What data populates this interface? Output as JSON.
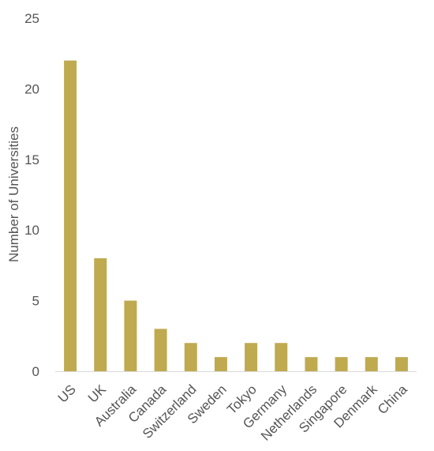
{
  "chart_data": {
    "type": "bar",
    "title": "",
    "xlabel": "",
    "ylabel": "Number of Universities",
    "categories": [
      "US",
      "UK",
      "Australia",
      "Canada",
      "Switzerland",
      "Sweden",
      "Tokyo",
      "Germany",
      "Netherlands",
      "Singapore",
      "Denmark",
      "China"
    ],
    "values": [
      22,
      8,
      5,
      3,
      2,
      1,
      2,
      2,
      1,
      1,
      1,
      1
    ],
    "ylim": [
      0,
      25
    ],
    "yticks": [
      "0",
      "5",
      "10",
      "15",
      "20",
      "25"
    ],
    "grid": false,
    "legend": "none",
    "bar_color": "#bfaa50",
    "axis_color": "#d9d9d9",
    "text_color": "#555555"
  }
}
